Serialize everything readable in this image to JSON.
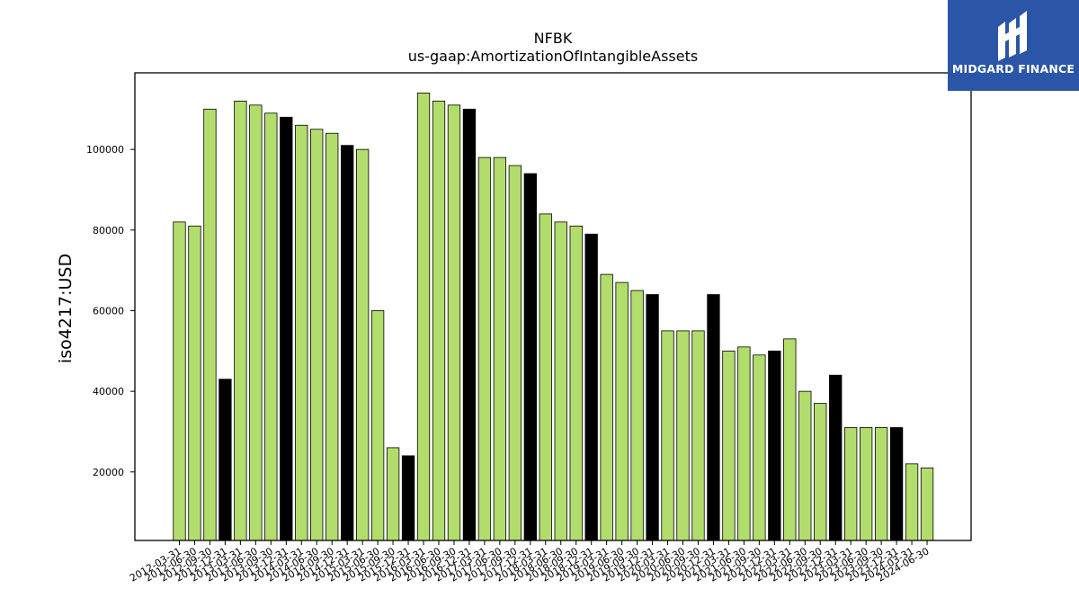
{
  "logo": {
    "text": "MIDGARD FINANCE",
    "background": "#2b56a8"
  },
  "chart_data": {
    "type": "bar",
    "title": "NFBK",
    "subtitle": "us-gaap:AmortizationOfIntangibleAssets",
    "xlabel": "",
    "ylabel": "iso4217:USD",
    "ylim": [
      3000,
      119000
    ],
    "yticks": [
      20000,
      40000,
      60000,
      80000,
      100000
    ],
    "grid": false,
    "colors": {
      "default": "#b2dd6c",
      "highlight": "#000000",
      "edge": "#000000"
    },
    "categories": [
      "2012-03-31",
      "2012-06-30",
      "2012-09-30",
      "2012-12-31",
      "2013-03-31",
      "2013-06-30",
      "2013-09-30",
      "2013-12-31",
      "2014-03-31",
      "2014-06-30",
      "2014-09-30",
      "2014-12-31",
      "2015-03-31",
      "2015-06-30",
      "2015-09-30",
      "2015-12-31",
      "2016-03-31",
      "2016-06-30",
      "2016-09-30",
      "2016-12-31",
      "2017-03-31",
      "2017-06-30",
      "2017-09-30",
      "2017-12-31",
      "2018-03-31",
      "2018-06-30",
      "2018-09-30",
      "2018-12-31",
      "2019-03-31",
      "2019-06-30",
      "2019-09-30",
      "2019-12-31",
      "2020-03-31",
      "2020-06-30",
      "2020-09-30",
      "2020-12-31",
      "2021-03-31",
      "2021-06-30",
      "2021-09-30",
      "2021-12-31",
      "2022-03-31",
      "2022-06-30",
      "2022-09-30",
      "2022-12-31",
      "2023-03-31",
      "2023-06-30",
      "2023-09-30",
      "2023-12-31",
      "2024-03-31",
      "2024-06-30"
    ],
    "values": [
      82000,
      81000,
      110000,
      43000,
      112000,
      111000,
      109000,
      108000,
      106000,
      105000,
      104000,
      101000,
      100000,
      60000,
      26000,
      24000,
      114000,
      112000,
      111000,
      110000,
      98000,
      98000,
      96000,
      94000,
      84000,
      82000,
      81000,
      79000,
      69000,
      67000,
      65000,
      64000,
      55000,
      55000,
      55000,
      64000,
      50000,
      51000,
      49000,
      50000,
      53000,
      40000,
      37000,
      44000,
      31000,
      31000,
      31000,
      31000,
      22000,
      21000
    ],
    "highlighted": [
      false,
      false,
      false,
      true,
      false,
      false,
      false,
      true,
      false,
      false,
      false,
      true,
      false,
      false,
      false,
      true,
      false,
      false,
      false,
      true,
      false,
      false,
      false,
      true,
      false,
      false,
      false,
      true,
      false,
      false,
      false,
      true,
      false,
      false,
      false,
      true,
      false,
      false,
      false,
      true,
      false,
      false,
      false,
      true,
      false,
      false,
      false,
      true,
      false,
      false
    ]
  }
}
